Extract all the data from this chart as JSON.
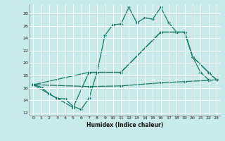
{
  "xlabel": "Humidex (Indice chaleur)",
  "bg_color": "#c8eaea",
  "grid_color": "#ffffff",
  "line_color": "#1a7a6a",
  "xlim": [
    -0.5,
    23.5
  ],
  "ylim": [
    11.5,
    29.5
  ],
  "xticks": [
    0,
    1,
    2,
    3,
    4,
    5,
    6,
    7,
    8,
    9,
    10,
    11,
    12,
    13,
    14,
    15,
    16,
    17,
    18,
    19,
    20,
    21,
    22,
    23
  ],
  "yticks": [
    12,
    14,
    16,
    18,
    20,
    22,
    24,
    26,
    28
  ],
  "series1": [
    [
      0,
      16.5
    ],
    [
      1,
      16.1
    ],
    [
      2,
      15.0
    ],
    [
      3,
      14.3
    ],
    [
      4,
      14.2
    ],
    [
      5,
      13.0
    ],
    [
      6,
      12.5
    ],
    [
      7,
      14.3
    ],
    [
      8,
      18.5
    ],
    [
      9,
      24.5
    ],
    [
      10,
      26.2
    ],
    [
      11,
      26.3
    ],
    [
      12,
      29.0
    ],
    [
      13,
      26.5
    ],
    [
      14,
      27.3
    ],
    [
      15,
      27.1
    ],
    [
      16,
      29.0
    ],
    [
      17,
      26.5
    ],
    [
      18,
      25.0
    ],
    [
      19,
      25.0
    ],
    [
      20,
      21.0
    ],
    [
      21,
      18.5
    ],
    [
      22,
      17.3
    ]
  ],
  "series2": [
    [
      0,
      16.5
    ],
    [
      2,
      15.0
    ],
    [
      3,
      14.3
    ],
    [
      5,
      12.8
    ],
    [
      7,
      18.5
    ],
    [
      11,
      18.5
    ],
    [
      16,
      25.0
    ],
    [
      19,
      25.0
    ],
    [
      20,
      21.0
    ],
    [
      22,
      18.5
    ],
    [
      23,
      17.3
    ]
  ],
  "series3": [
    [
      0,
      16.5
    ],
    [
      7,
      18.5
    ],
    [
      11,
      18.5
    ],
    [
      16,
      25.0
    ],
    [
      19,
      25.0
    ],
    [
      20,
      21.0
    ],
    [
      22,
      18.5
    ],
    [
      23,
      17.3
    ]
  ],
  "series4": [
    [
      0,
      16.5
    ],
    [
      7,
      16.2
    ],
    [
      11,
      16.3
    ],
    [
      16,
      16.8
    ],
    [
      19,
      17.0
    ],
    [
      22,
      17.2
    ],
    [
      23,
      17.3
    ]
  ]
}
